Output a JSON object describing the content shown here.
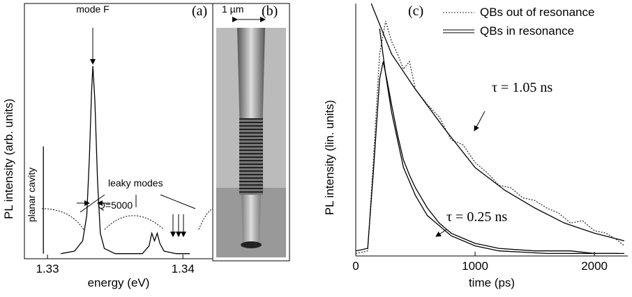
{
  "chart_data": [
    {
      "type": "line",
      "panel_label": "(a)",
      "x_label": "energy (eV)",
      "y_label": "PL intensity (arb. units)",
      "annotations": [
        "mode F",
        "Q=5000",
        "leaky modes",
        "planar cavity"
      ],
      "xlim": [
        1.3283,
        1.3422
      ],
      "xticks": [
        1.33,
        1.34
      ],
      "ylim": [
        0,
        1
      ],
      "series": [
        {
          "color": "#000000",
          "x": [
            1.3297,
            1.3297
          ],
          "values": [
            0.02,
            0.44
          ]
        },
        {
          "color": "#000000",
          "x": [
            1.331,
            1.332,
            1.3326,
            1.3329,
            1.3331,
            1.33325,
            1.33335,
            1.3335,
            1.3337,
            1.3339,
            1.3342,
            1.335,
            1.337,
            1.3375,
            1.3377,
            1.3379,
            1.3381,
            1.3383,
            1.3386,
            1.3395,
            1.3405
          ],
          "values": [
            0.02,
            0.03,
            0.07,
            0.17,
            0.4,
            0.65,
            0.755,
            0.62,
            0.3,
            0.1,
            0.04,
            0.02,
            0.02,
            0.05,
            0.1,
            0.07,
            0.1,
            0.06,
            0.03,
            0.02,
            0.02
          ]
        }
      ]
    },
    {
      "type": "line",
      "panel_label": "(c)",
      "x_label": "time (ps)",
      "y_label": "PL intensity (lin. units)",
      "annotations": [
        "τ = 1.05 ns",
        "τ = 0.25 ns"
      ],
      "xlim": [
        0,
        2280
      ],
      "xticks": [
        0,
        1000,
        2000
      ],
      "ylim": [
        0,
        1
      ],
      "series": [
        {
          "name": "QBs out of resonance",
          "color": "#333333",
          "line_style": "dashed",
          "x": [
            0,
            100,
            150,
            200,
            250,
            300,
            350,
            400,
            450,
            500,
            600,
            700,
            800,
            900,
            1000,
            1100,
            1200,
            1300,
            1400,
            1500,
            1600,
            1700,
            1800,
            1900,
            2000,
            2100,
            2200,
            2250
          ],
          "values": [
            0.01,
            0.02,
            0.4,
            0.8,
            0.93,
            0.85,
            0.8,
            0.74,
            0.77,
            0.66,
            0.6,
            0.55,
            0.46,
            0.44,
            0.37,
            0.33,
            0.28,
            0.27,
            0.23,
            0.22,
            0.19,
            0.17,
            0.13,
            0.14,
            0.1,
            0.09,
            0.06,
            0.04
          ]
        },
        {
          "name": "QBs in resonance",
          "color": "#000000",
          "line_style": "double",
          "x": [
            0,
            100,
            150,
            200,
            230,
            260,
            300,
            350,
            400,
            450,
            500,
            600,
            700,
            800,
            900,
            1000,
            1200,
            1500,
            1800,
            2000,
            2250
          ],
          "values": [
            0.02,
            0.03,
            0.35,
            0.7,
            0.77,
            0.7,
            0.6,
            0.48,
            0.38,
            0.32,
            0.27,
            0.19,
            0.13,
            0.09,
            0.07,
            0.05,
            0.03,
            0.02,
            0.02,
            0.01,
            0.01
          ]
        },
        {
          "color": "#000000",
          "x": [
            130,
            300,
            500,
            750,
            1000,
            1250,
            1500,
            1750,
            2000,
            2250
          ],
          "values": [
            1.0,
            0.8,
            0.66,
            0.5,
            0.35,
            0.26,
            0.19,
            0.13,
            0.09,
            0.06
          ]
        },
        {
          "color": "#000000",
          "x": [
            200,
            250,
            300,
            400,
            500,
            600,
            800,
            1000,
            1200,
            1600,
            2200
          ],
          "values": [
            0.9,
            0.72,
            0.57,
            0.35,
            0.24,
            0.16,
            0.08,
            0.04,
            0.02,
            0.01,
            0.01
          ]
        }
      ]
    }
  ],
  "image_panel": {
    "panel_label": "(b)",
    "scale_label": "1 µm"
  }
}
